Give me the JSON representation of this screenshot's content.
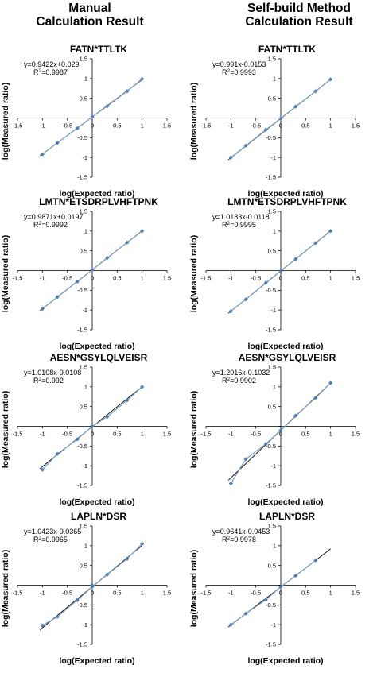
{
  "headers": {
    "left": [
      "Manual",
      "Calculation Result"
    ],
    "right": [
      "Self-build Method",
      "Calculation Result"
    ]
  },
  "axis_labels": {
    "x": "log(Expected ratio)",
    "y": "log(Measured ratio)"
  },
  "chart_data": [
    {
      "type": "scatter",
      "title": "FATN*TTLTK",
      "equation": "y=0.9422x+0.029",
      "r2_value": "=0.9987",
      "xlabel": "log(Expected ratio)",
      "ylabel": "log(Measured ratio)",
      "xlim": [
        -1.5,
        1.5
      ],
      "ylim": [
        -1.5,
        1.5
      ],
      "x_ticks": [
        "-1.5",
        "-1",
        "-0.5",
        "0",
        "0.5",
        "1",
        "1.5"
      ],
      "y_ticks": [
        "1.5",
        "1",
        "0.5",
        "0",
        "-0.5",
        "-1",
        "-1.5"
      ],
      "trendline": {
        "slope": 0.9422,
        "intercept": 0.029
      },
      "points": [
        [
          -1,
          -0.92
        ],
        [
          -0.7,
          -0.63
        ],
        [
          -0.3,
          -0.26
        ],
        [
          0,
          0.03
        ],
        [
          0.3,
          0.3
        ],
        [
          0.7,
          0.68
        ],
        [
          1,
          0.99
        ]
      ],
      "line_points": [
        [
          -1,
          -0.92
        ],
        [
          -0.7,
          -0.63
        ],
        [
          -0.3,
          -0.26
        ],
        [
          0,
          0.03
        ],
        [
          0.3,
          0.3
        ],
        [
          0.7,
          0.68
        ],
        [
          1,
          0.99
        ]
      ],
      "grid": false
    },
    {
      "type": "scatter",
      "title": "FATN*TTLTK",
      "equation": "y=0.991x-0.0153",
      "r2_value": "=0.9993",
      "xlabel": "log(Expected ratio)",
      "ylabel": "log(Measured ratio)",
      "xlim": [
        -1.5,
        1.5
      ],
      "ylim": [
        -1.5,
        1.5
      ],
      "x_ticks": [
        "-1.5",
        "-1",
        "-0.5",
        "0",
        "0.5",
        "1",
        "1.5"
      ],
      "y_ticks": [
        "1.5",
        "1",
        "0.5",
        "0",
        "-0.5",
        "-1",
        "-1.5"
      ],
      "trendline": {
        "slope": 0.991,
        "intercept": -0.0153
      },
      "points": [
        [
          -1,
          -1.0
        ],
        [
          -0.7,
          -0.7
        ],
        [
          -0.3,
          -0.3
        ],
        [
          0,
          -0.01
        ],
        [
          0.3,
          0.29
        ],
        [
          0.7,
          0.68
        ],
        [
          1,
          0.98
        ]
      ],
      "line_points": [
        [
          -1,
          -1.0
        ],
        [
          -0.7,
          -0.7
        ],
        [
          -0.3,
          -0.3
        ],
        [
          0,
          -0.01
        ],
        [
          0.3,
          0.29
        ],
        [
          0.7,
          0.68
        ],
        [
          1,
          0.98
        ]
      ],
      "grid": false
    },
    {
      "type": "scatter",
      "title": "LMTN*ETSDRPLVHFTPNK",
      "equation": "y=0.9871x+0.0197",
      "r2_value": "=0.9992",
      "xlabel": "log(Expected ratio)",
      "ylabel": "log(Measured ratio)",
      "xlim": [
        -1.5,
        1.5
      ],
      "ylim": [
        -1.5,
        1.5
      ],
      "x_ticks": [
        "-1.5",
        "-1",
        "-0.5",
        "0",
        "0.5",
        "1",
        "1.5"
      ],
      "y_ticks": [
        "1.5",
        "1",
        "0.5",
        "0",
        "-0.5",
        "-1",
        "-1.5"
      ],
      "trendline": {
        "slope": 0.9871,
        "intercept": 0.0197
      },
      "points": [
        [
          -1,
          -0.97
        ],
        [
          -0.7,
          -0.67
        ],
        [
          -0.3,
          -0.28
        ],
        [
          0,
          0.02
        ],
        [
          0.3,
          0.32
        ],
        [
          0.7,
          0.71
        ],
        [
          1,
          1.0
        ]
      ],
      "line_points": [
        [
          -1,
          -0.97
        ],
        [
          -0.7,
          -0.67
        ],
        [
          -0.3,
          -0.28
        ],
        [
          0,
          0.02
        ],
        [
          0.3,
          0.32
        ],
        [
          0.7,
          0.71
        ],
        [
          1,
          1.0
        ]
      ],
      "grid": false
    },
    {
      "type": "scatter",
      "title": "LMTN*ETSDRPLVHFTPNK",
      "equation": "y=1.0183x-0.0118",
      "r2_value": "=0.9995",
      "xlabel": "log(Expected ratio)",
      "ylabel": "log(Measured ratio)",
      "xlim": [
        -1.5,
        1.5
      ],
      "ylim": [
        -1.5,
        1.5
      ],
      "x_ticks": [
        "-1.5",
        "-1",
        "-0.5",
        "0",
        "0.5",
        "1",
        "1.5"
      ],
      "y_ticks": [
        "1.5",
        "1",
        "0.5",
        "0",
        "-0.5",
        "-1",
        "-1.5"
      ],
      "trendline": {
        "slope": 1.0183,
        "intercept": -0.0118
      },
      "points": [
        [
          -1,
          -1.03
        ],
        [
          -0.7,
          -0.73
        ],
        [
          -0.3,
          -0.31
        ],
        [
          0,
          -0.01
        ],
        [
          0.3,
          0.29
        ],
        [
          0.7,
          0.7
        ],
        [
          1,
          1.0
        ]
      ],
      "line_points": [
        [
          -1,
          -1.03
        ],
        [
          -0.7,
          -0.73
        ],
        [
          -0.3,
          -0.31
        ],
        [
          0,
          -0.01
        ],
        [
          0.3,
          0.29
        ],
        [
          0.7,
          0.7
        ],
        [
          1,
          1.0
        ]
      ],
      "grid": false
    },
    {
      "type": "scatter",
      "title": "AESN*GSYLQLVEISR",
      "equation": "y=1.0108x-0.0108",
      "r2_value": "=0.992",
      "xlabel": "log(Expected ratio)",
      "ylabel": "log(Measured ratio)",
      "xlim": [
        -1.5,
        1.5
      ],
      "ylim": [
        -1.5,
        1.5
      ],
      "x_ticks": [
        "-1.5",
        "-1",
        "-0.5",
        "0",
        "0.5",
        "1",
        "1.5"
      ],
      "y_ticks": [
        "1.5",
        "1",
        "0.5",
        "0",
        "-0.5",
        "-1",
        "-1.5"
      ],
      "trendline": {
        "slope": 1.0108,
        "intercept": -0.0108
      },
      "points": [
        [
          -1,
          -1.1
        ],
        [
          -0.7,
          -0.7
        ],
        [
          -0.3,
          -0.33
        ],
        [
          0,
          0.0
        ],
        [
          0.3,
          0.24
        ],
        [
          0.7,
          0.66
        ],
        [
          1,
          1.0
        ]
      ],
      "line_points": [
        [
          -1,
          -1.1
        ],
        [
          -0.7,
          -0.7
        ],
        [
          -0.3,
          -0.33
        ],
        [
          0,
          0.0
        ],
        [
          0.3,
          0.24
        ],
        [
          0.7,
          0.66
        ],
        [
          1,
          1.0
        ]
      ],
      "grid": false
    },
    {
      "type": "scatter",
      "title": "AESN*GSYLQLVEISR",
      "equation": "y=1.2016x-0.1032",
      "r2_value": "=0.9902",
      "xlabel": "log(Expected ratio)",
      "ylabel": "log(Measured ratio)",
      "xlim": [
        -1.5,
        1.5
      ],
      "ylim": [
        -1.5,
        1.5
      ],
      "x_ticks": [
        "-1.5",
        "-1",
        "-0.5",
        "0",
        "0.5",
        "1",
        "1.5"
      ],
      "y_ticks": [
        "1.5",
        "1",
        "0.5",
        "0",
        "-0.5",
        "-1",
        "-1.5"
      ],
      "trendline": {
        "slope": 1.2016,
        "intercept": -0.1032
      },
      "points": [
        [
          -1,
          -1.45
        ],
        [
          -0.7,
          -0.83
        ],
        [
          -0.3,
          -0.45
        ],
        [
          0,
          -0.1
        ],
        [
          0.3,
          0.27
        ],
        [
          0.7,
          0.72
        ],
        [
          1,
          1.1
        ]
      ],
      "line_points": [
        [
          -1,
          -1.45
        ],
        [
          -0.7,
          -0.83
        ],
        [
          -0.3,
          -0.45
        ],
        [
          0,
          -0.1
        ],
        [
          0.3,
          0.27
        ],
        [
          0.7,
          0.72
        ],
        [
          1,
          1.1
        ]
      ],
      "grid": false
    },
    {
      "type": "scatter",
      "title": "LAPLN*DSR",
      "equation": "y=1.0423x-0.0365",
      "r2_value": "=0.9965",
      "xlabel": "log(Expected ratio)",
      "ylabel": "log(Measured ratio)",
      "xlim": [
        -1.5,
        1.5
      ],
      "ylim": [
        -1.5,
        1.5
      ],
      "x_ticks": [
        "-1.5",
        "-1",
        "-0.5",
        "0",
        "0.5",
        "1",
        "1.5"
      ],
      "y_ticks": [
        "1.5",
        "1",
        "0.5",
        "0",
        "-0.5",
        "-1",
        "-1.5"
      ],
      "trendline": {
        "slope": 1.0423,
        "intercept": -0.0365
      },
      "points": [
        [
          -1,
          -1.02
        ],
        [
          -0.7,
          -0.8
        ],
        [
          -0.3,
          -0.38
        ],
        [
          0,
          -0.04
        ],
        [
          0,
          0.0
        ],
        [
          0.3,
          0.27
        ],
        [
          0.7,
          0.67
        ],
        [
          1,
          1.05
        ]
      ],
      "line_points": [
        [
          -1,
          -1.02
        ],
        [
          -0.7,
          -0.8
        ],
        [
          -0.3,
          -0.38
        ],
        [
          0,
          -0.04
        ],
        [
          0.3,
          0.27
        ],
        [
          0.7,
          0.67
        ],
        [
          1,
          1.05
        ]
      ],
      "grid": false
    },
    {
      "type": "scatter",
      "title": "LAPLN*DSR",
      "equation": "y=0.9641x-0.0453",
      "r2_value": "=0.9978",
      "xlabel": "log(Expected ratio)",
      "ylabel": "log(Measured ratio)",
      "xlim": [
        -1.5,
        1.5
      ],
      "ylim": [
        -1.5,
        1.5
      ],
      "x_ticks": [
        "-1.5",
        "-1",
        "-0.5",
        "0",
        "0.5",
        "1",
        "1.5"
      ],
      "y_ticks": [
        "1.5",
        "1",
        "0.5",
        "0",
        "-0.5",
        "-1",
        "-1.5"
      ],
      "trendline": {
        "slope": 0.9641,
        "intercept": -0.0453
      },
      "points": [
        [
          -1,
          -1.0
        ],
        [
          -0.7,
          -0.72
        ],
        [
          -0.3,
          -0.37
        ],
        [
          0,
          -0.04
        ],
        [
          0.3,
          0.24
        ],
        [
          0.7,
          0.63
        ]
      ],
      "line_points": [
        [
          -1,
          -1.0
        ],
        [
          -0.7,
          -0.72
        ],
        [
          -0.3,
          -0.37
        ],
        [
          0,
          -0.04
        ],
        [
          0.3,
          0.24
        ],
        [
          0.7,
          0.63
        ]
      ],
      "grid": false
    }
  ],
  "colors": {
    "marker": "#4a7ebb",
    "line": "#7a9cc6",
    "trend": "#000000",
    "axis": "#000000"
  }
}
